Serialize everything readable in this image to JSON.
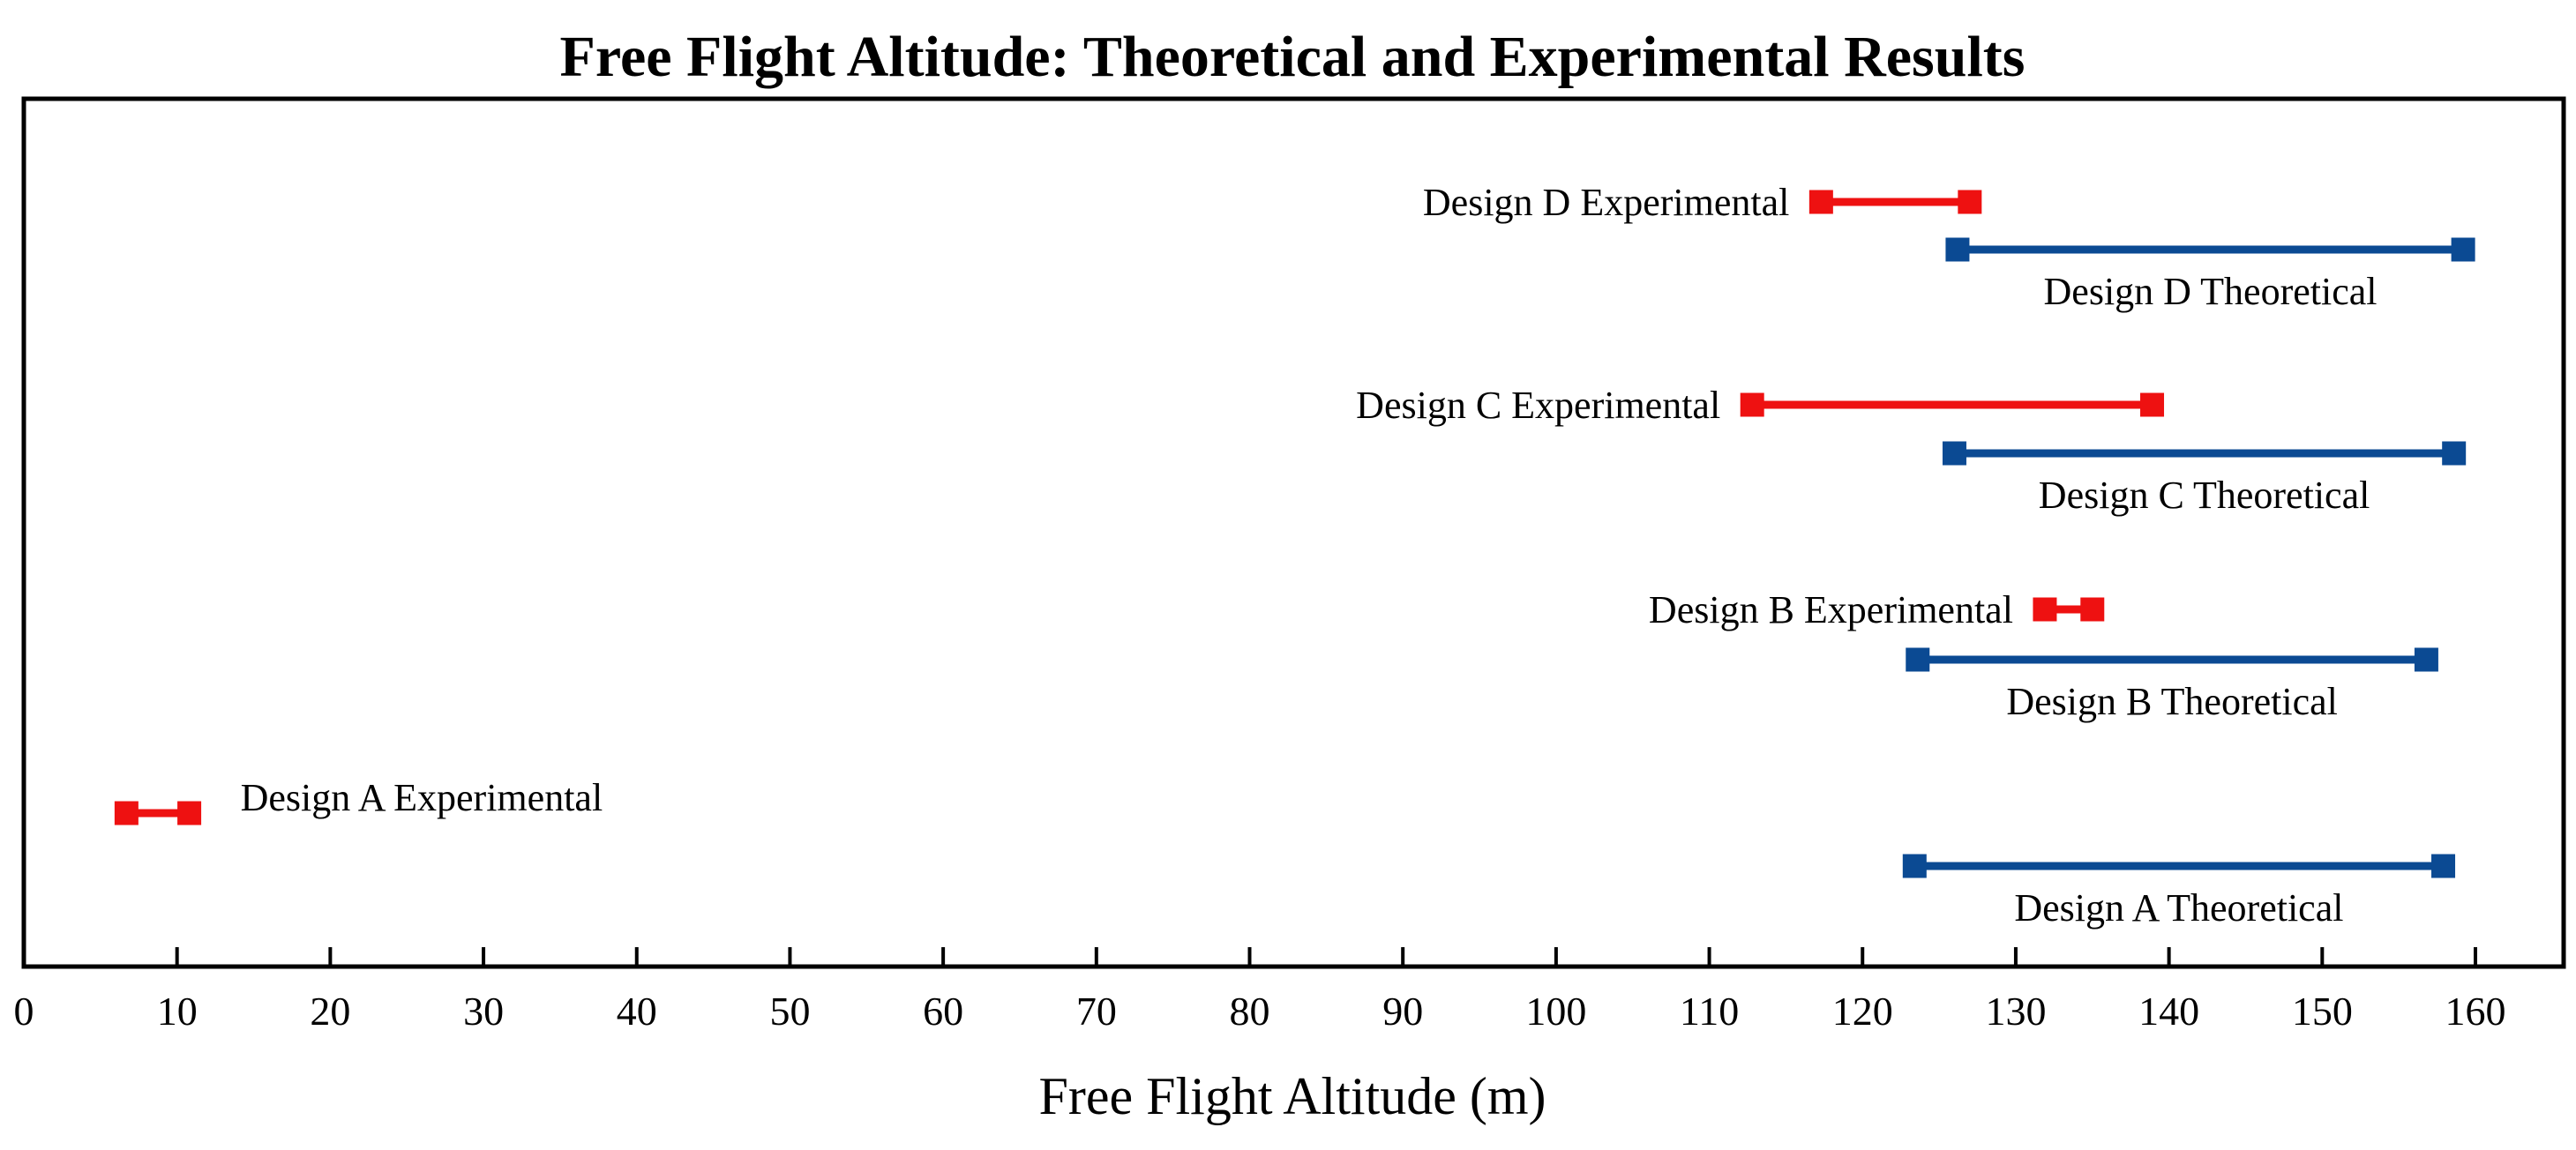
{
  "chart_data": {
    "type": "range",
    "title": "Free Flight Altitude: Theoretical and Experimental Results",
    "xlabel": "Free Flight Altitude (m)",
    "ylabel": "",
    "xlim": [
      0,
      165
    ],
    "xticks": [
      0,
      10,
      20,
      30,
      40,
      50,
      60,
      70,
      80,
      90,
      100,
      110,
      120,
      130,
      140,
      150,
      160
    ],
    "colors": {
      "experimental": "#ee1111",
      "theoretical": "#0b4a93"
    },
    "series": [
      {
        "name": "Design D Experimental",
        "kind": "experimental",
        "min": 117.3,
        "max": 127.0
      },
      {
        "name": "Design D Theoretical",
        "kind": "theoretical",
        "min": 126.2,
        "max": 159.2
      },
      {
        "name": "Design C Experimental",
        "kind": "experimental",
        "min": 112.8,
        "max": 138.9
      },
      {
        "name": "Design C Theoretical",
        "kind": "theoretical",
        "min": 126.0,
        "max": 158.6
      },
      {
        "name": "Design B Experimental",
        "kind": "experimental",
        "min": 131.9,
        "max": 135.0
      },
      {
        "name": "Design B Theoretical",
        "kind": "theoretical",
        "min": 123.6,
        "max": 156.8
      },
      {
        "name": "Design A Experimental",
        "kind": "experimental",
        "min": 6.7,
        "max": 10.8
      },
      {
        "name": "Design A Theoretical",
        "kind": "theoretical",
        "min": 123.4,
        "max": 157.9
      }
    ]
  }
}
